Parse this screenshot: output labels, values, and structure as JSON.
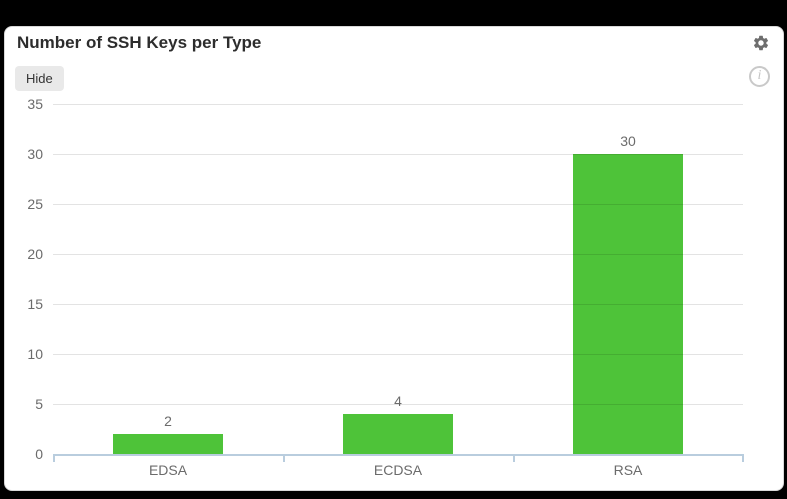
{
  "widget": {
    "title": "Number of SSH Keys per Type",
    "hide_button_label": "Hide",
    "info_icon_glyph": "i"
  },
  "colors": {
    "bar_green": "#4ec339",
    "axis_blue_gray": "#b9cdde",
    "grid_gray": "#e3e3e3",
    "text_gray": "#6b6b6b",
    "title_dark": "#2d2d2d",
    "card_background": "#ffffff",
    "page_background": "#000000"
  },
  "chart_data": {
    "type": "bar",
    "title": "Number of SSH Keys per Type",
    "categories": [
      "EDSA",
      "ECDSA",
      "RSA"
    ],
    "values": [
      2,
      4,
      30
    ],
    "xlabel": "",
    "ylabel": "",
    "ylim": [
      0,
      35
    ],
    "ytick_step": 5,
    "yticks": [
      0,
      5,
      10,
      15,
      20,
      25,
      30,
      35
    ],
    "grid": true,
    "legend": false,
    "value_labels_shown": true,
    "bar_color": "#4ec339"
  }
}
